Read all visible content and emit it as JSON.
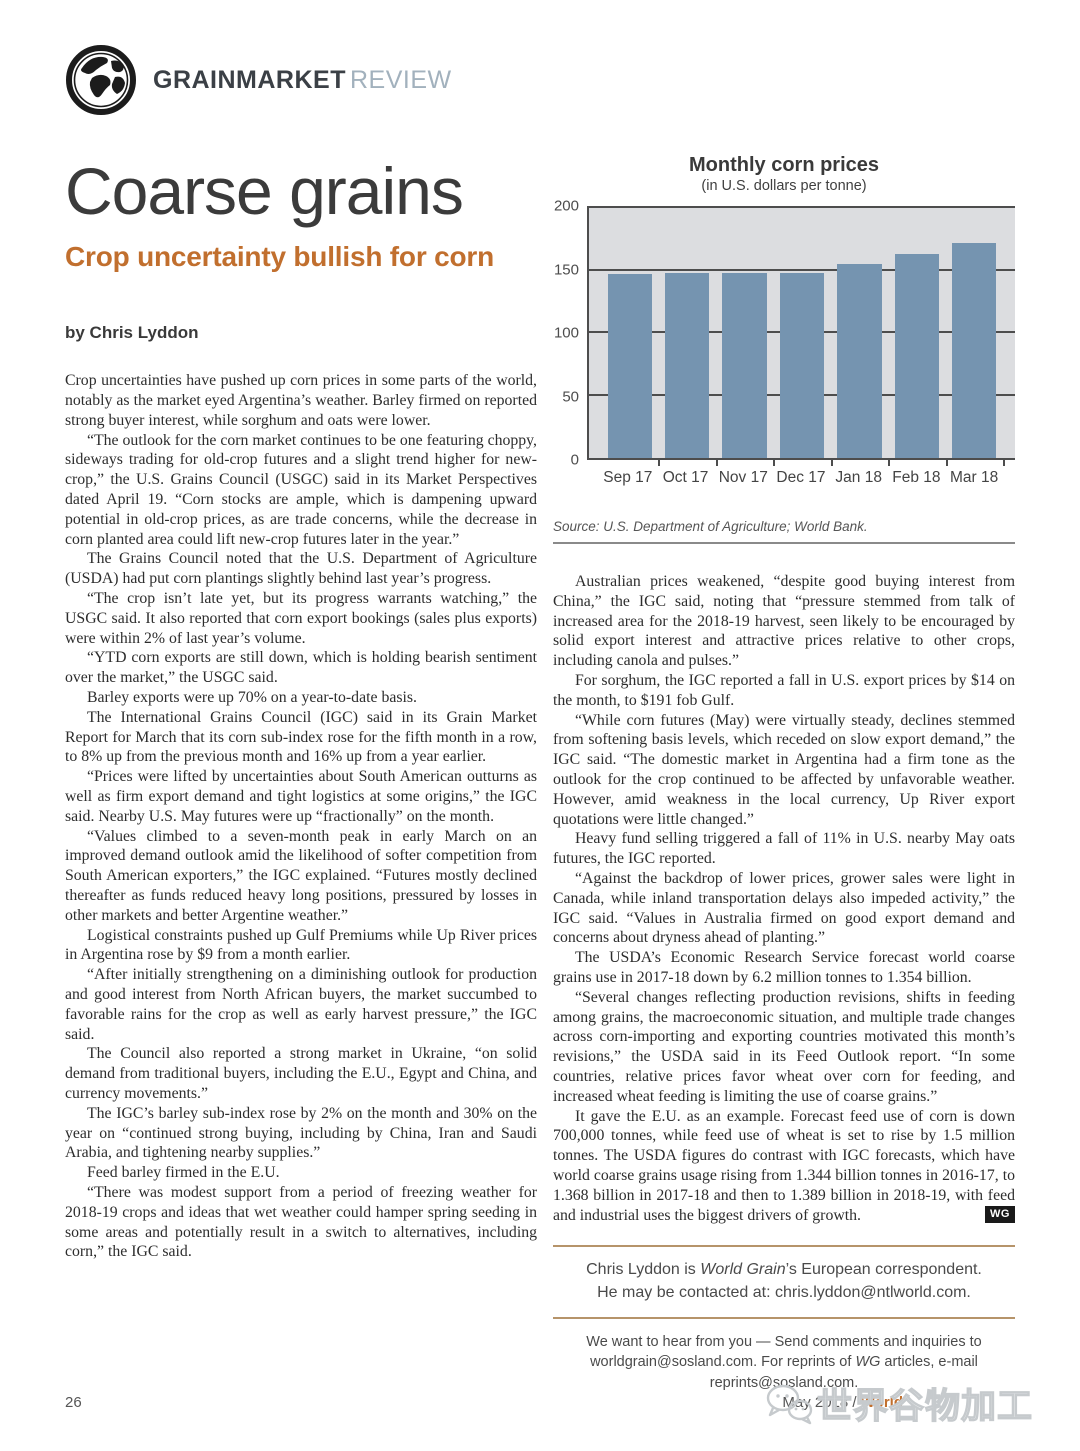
{
  "header": {
    "brand_bold": "GRAINMARKET",
    "brand_light": "REVIEW"
  },
  "article": {
    "title": "Coarse grains",
    "subtitle": "Crop uncertainty bullish for corn",
    "byline": "by Chris Lyddon",
    "end_badge": "WG",
    "left_column": [
      "Crop uncertainties have pushed up corn prices in some parts of the world, notably as the market eyed Argentina’s weather. Barley firmed on reported strong buyer interest, while sorghum and oats were lower.",
      "“The outlook for the corn market continues to be one featuring choppy, sideways trading for old-crop futures and a slight trend higher for new-crop,” the U.S. Grains Council (USGC) said in its Market Perspectives dated April 19. “Corn stocks are ample, which is dampening upward potential in old-crop prices, as are trade concerns, while the decrease in corn planted area could lift new-crop futures later in the year.”",
      "The Grains Council noted that the U.S. Department of Agriculture (USDA) had put corn plantings slightly behind last year’s progress.",
      "“The crop isn’t late yet, but its progress warrants watching,” the USGC said. It also reported that corn export bookings (sales plus exports) were within 2% of last year’s volume.",
      "“YTD corn exports are still down, which is holding bearish sentiment over the market,” the USGC said.",
      "Barley exports were up 70% on a year-to-date basis.",
      "The International Grains Council (IGC) said in its Grain Market Report for March that its corn sub-index rose for the fifth month in a row, to 8% up from the previous month and 16% up from a year earlier.",
      "“Prices were lifted by uncertainties about South American outturns as well as firm export demand and tight logistics at some origins,” the IGC said. Nearby U.S. May futures were up “fractionally” on the month.",
      "“Values climbed to a seven-month peak in early March on an improved demand outlook amid the likelihood of softer competition from South American exporters,” the IGC explained. “Futures mostly declined thereafter as funds reduced heavy long positions, pressured by losses in other markets and better Argentine weather.”",
      "Logistical constraints pushed up Gulf Premiums while Up River prices in Argentina rose by $9 from a month earlier.",
      "“After initially strengthening on a diminishing outlook for production and good interest from North African buyers, the market succumbed to favorable rains for the crop as well as early harvest pressure,” the IGC said.",
      "The Council also reported a strong market in Ukraine, “on solid demand from traditional buyers, including the E.U., Egypt and China, and currency movements.”",
      "The IGC’s barley sub-index rose by 2% on the month and 30% on the year on “continued strong buying, including by China, Iran and Saudi Arabia, and tightening nearby supplies.”",
      "Feed barley firmed in the E.U.",
      "“There was modest support from a period of freezing weather for 2018-19 crops and ideas that wet weather could hamper spring seeding in some areas and potentially result in a switch to alternatives, including corn,” the IGC said."
    ],
    "right_column": [
      "Australian prices weakened, “despite good buying interest from China,” the IGC said, noting that “pressure stemmed from talk of increased area for the 2018-19 harvest, seen likely to be encouraged by solid export interest and attractive prices relative to other crops, including canola and pulses.”",
      "For sorghum, the IGC reported a fall in U.S. export prices by $14 on the month, to $191 fob Gulf.",
      "“While corn futures (May) were virtually steady, declines stemmed from softening basis levels, which receded on slow export demand,” the IGC said. “The domestic market in Argentina had a firm tone as the outlook for the crop continued to be affected by unfavorable weather. However, amid weakness in the local currency, Up River export quotations were little changed.”",
      "Heavy fund selling triggered a fall of 11% in U.S. nearby May oats futures, the IGC reported.",
      "“Against the backdrop of lower prices, grower sales were light in Canada, while inland transportation delays also impeded activity,” the IGC said. “Values in Australia firmed on good export demand and concerns about dryness ahead of planting.”",
      "The USDA’s Economic Research Service forecast world coarse grains use in 2017-18 down by 6.2 million tonnes to 1.354 billion.",
      "“Several changes reflecting production revisions, shifts in feeding among grains, the macroeconomic situation, and multiple trade changes across corn-importing and exporting countries motivated this month’s revisions,” the USDA said in its Feed Outlook report. “In some countries, relative prices favor wheat over corn for feeding, and increased wheat feeding is limiting the use of coarse grains.”",
      "It gave the E.U. as an example. Forecast feed use of corn is down 700,000 tonnes, while feed use of wheat is set to rise by 1.5 million tonnes. The USDA figures do contrast with IGC forecasts, which have world coarse grains usage rising from 1.344 billion tonnes in 2016-17, to 1.368 billion in 2017-18 and then to 1.389 billion in 2018-19, with feed and industrial uses the biggest drivers of growth."
    ]
  },
  "chart_data": {
    "type": "bar",
    "title": "Monthly corn prices",
    "subtitle": "(in U.S. dollars per tonne)",
    "categories": [
      "Sep 17",
      "Oct 17",
      "Nov 17",
      "Dec 17",
      "Jan 18",
      "Feb 18",
      "Mar 18"
    ],
    "values": [
      147,
      148,
      148,
      148,
      155,
      163,
      172
    ],
    "ylim": [
      0,
      200
    ],
    "yticks": [
      0,
      50,
      100,
      150,
      200
    ],
    "xlabel": "",
    "ylabel": "",
    "grid": "horizontal",
    "legend_position": "none",
    "bar_color": "#7594b0",
    "plot_background": "#dcdde0",
    "source": "Source: U.S. Department of Agriculture; World Bank."
  },
  "contact": {
    "line1_pre": "Chris Lyddon is ",
    "line1_italic": "World Grain",
    "line1_post": "’s European correspondent.",
    "line2": "He may be contacted at: chris.lyddon@ntlworld.com."
  },
  "feedback": {
    "line1": "We want to hear from you — Send comments and inquiries to",
    "line2_pre": "worldgrain@sosland.com. For reprints of ",
    "line2_italic": "WG",
    "line2_post": " articles, e-mail reprints@sosland.com."
  },
  "footer": {
    "page_number": "26",
    "date_text": "May 2018 / ",
    "brand_text": "World",
    "watermark_text": "世界谷物加工"
  },
  "colors": {
    "accent_orange": "#c16f2e",
    "bar_blue": "#7594b0",
    "plot_gray": "#dcdde0",
    "rule_tan": "#b6946a",
    "badge_black": "#1a1a1a"
  }
}
